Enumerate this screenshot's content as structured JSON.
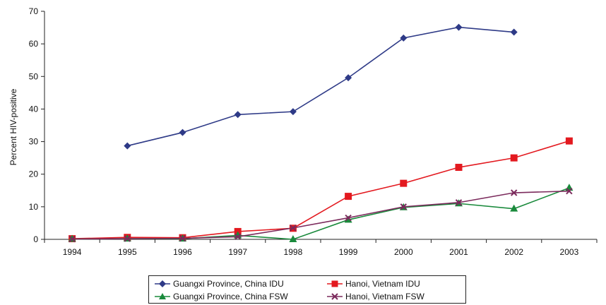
{
  "chart_data": {
    "type": "line",
    "title": "",
    "xlabel": "",
    "ylabel": "Percent HIV-positive",
    "ylim": [
      0,
      70
    ],
    "yticks": [
      0,
      10,
      20,
      30,
      40,
      50,
      60,
      70
    ],
    "categories": [
      "1994",
      "1995",
      "1996",
      "1997",
      "1998",
      "1999",
      "2000",
      "2001",
      "2002",
      "2003"
    ],
    "grid": false,
    "legend_position": "bottom",
    "series": [
      {
        "name": "Guangxi Province, China IDU",
        "color": "#2e3a87",
        "marker": "diamond",
        "values": [
          null,
          28.7,
          32.8,
          38.3,
          39.2,
          49.6,
          61.8,
          65.1,
          63.6,
          null
        ]
      },
      {
        "name": "Hanoi, Vietnam IDU",
        "color": "#e3191f",
        "marker": "square",
        "values": [
          0.2,
          0.6,
          0.5,
          2.4,
          3.4,
          13.2,
          17.2,
          22.1,
          25.0,
          30.2
        ]
      },
      {
        "name": "Guangxi Province, China FSW",
        "color": "#1a8a3c",
        "marker": "triangle",
        "values": [
          0.1,
          0.2,
          0.2,
          1.2,
          0.0,
          6.0,
          9.8,
          11.0,
          9.4,
          15.8
        ]
      },
      {
        "name": "Hanoi, Vietnam FSW",
        "color": "#7b2a5c",
        "marker": "x",
        "values": [
          0.1,
          0.2,
          0.3,
          0.8,
          3.5,
          6.6,
          10.0,
          11.3,
          14.3,
          14.8
        ]
      }
    ]
  }
}
